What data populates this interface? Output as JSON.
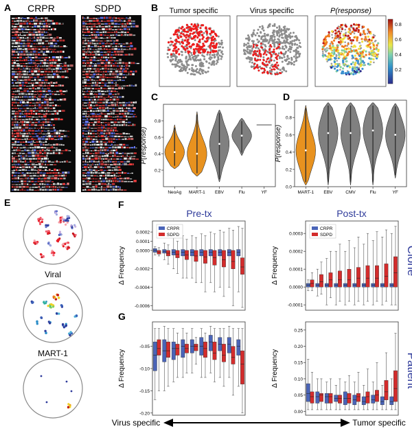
{
  "figure": {
    "panel_letters": [
      "A",
      "B",
      "C",
      "D",
      "E",
      "F",
      "G"
    ],
    "panelA": {
      "labels": [
        "CRPR",
        "SDPD"
      ]
    },
    "panelB": {
      "titles": [
        "Tumor specific",
        "Virus specific",
        "P(response)"
      ],
      "colorbar_ticks": [
        "0.8",
        "0.6",
        "0.4",
        "0.2"
      ]
    },
    "panelE": {
      "labels": [
        "Viral",
        "MART-1"
      ]
    },
    "panelF": {
      "titles": [
        "Pre-tx",
        "Post-tx"
      ]
    },
    "row_labels": [
      "Clone",
      "Patient"
    ],
    "legend": [
      "CRPR",
      "SDPD"
    ],
    "bottom_axis": {
      "left": "Virus specific",
      "right": "Tumor specific"
    },
    "colors": {
      "orange": "#e8921f",
      "grey": "#808080",
      "crpr": "#4a64b8",
      "sdpd": "#d32c2c",
      "title_blue": "#2e3a9a"
    }
  },
  "chart_data": [
    {
      "id": "C",
      "type": "violin",
      "ylabel": "P(response)",
      "ylim": [
        0.0,
        1.0
      ],
      "yticks": [
        "0.2",
        "0.4",
        "0.6",
        "0.8"
      ],
      "ytick_values": [
        0.2,
        0.4,
        0.6,
        0.8
      ],
      "categories": [
        "NeoAg",
        "MART-1",
        "EBV",
        "Flu",
        "YF"
      ],
      "colors": [
        "orange",
        "orange",
        "grey",
        "grey",
        "grey"
      ],
      "ranges": [
        [
          0.22,
          0.75
        ],
        [
          0.13,
          0.91
        ],
        [
          0.06,
          0.93
        ],
        [
          0.38,
          0.83
        ],
        [
          0.75,
          0.75
        ]
      ],
      "medians": [
        0.42,
        0.4,
        0.52,
        0.62,
        0.75
      ]
    },
    {
      "id": "D",
      "type": "violin",
      "ylabel": "P(response)",
      "ylim": [
        0.0,
        1.0
      ],
      "yticks": [
        "0.0",
        "0.2",
        "0.4",
        "0.6",
        "0.8"
      ],
      "ytick_values": [
        0.0,
        0.2,
        0.4,
        0.6,
        0.8
      ],
      "categories": [
        "MART-1",
        "EBV",
        "CMV",
        "Flu",
        "YF"
      ],
      "colors": [
        "orange",
        "grey",
        "grey",
        "grey",
        "grey"
      ],
      "ranges": [
        [
          0.02,
          0.94
        ],
        [
          0.02,
          0.97
        ],
        [
          0.02,
          0.97
        ],
        [
          0.02,
          0.97
        ],
        [
          0.1,
          0.96
        ]
      ],
      "medians": [
        0.42,
        0.62,
        0.62,
        0.65,
        0.6
      ]
    },
    {
      "id": "F-pre",
      "type": "box",
      "ylabel": "Δ Frequency",
      "ylim": [
        -0.00065,
        0.00032
      ],
      "yticks": [
        "0.0002",
        "0.0001",
        "0.0000",
        "-0.0002",
        "-0.0004",
        "-0.0006"
      ],
      "ytick_values": [
        0.0002,
        0.0001,
        0.0,
        -0.0002,
        -0.0004,
        -0.0006
      ],
      "series": [
        {
          "name": "CRPR",
          "boxes": [
            [
              -5e-05,
              -2e-05,
              -0.0,
              2e-05,
              4e-05
            ],
            [
              -0.0001,
              -3e-05,
              -1e-05,
              1e-05,
              8e-05
            ],
            [
              -0.0002,
              -5e-05,
              -2e-05,
              1e-05,
              0.00014
            ],
            [
              -0.0003,
              -6e-05,
              -2e-05,
              1e-05,
              0.00016
            ],
            [
              -0.0003,
              -6e-05,
              -2e-05,
              1e-05,
              0.00016
            ],
            [
              -0.00035,
              -6e-05,
              -2e-05,
              1e-05,
              0.00018
            ],
            [
              -0.00035,
              -6e-05,
              -2e-05,
              1e-05,
              0.0002
            ],
            [
              -0.0004,
              -6e-05,
              -2e-05,
              1e-05,
              0.00022
            ],
            [
              -0.0004,
              -6e-05,
              -2e-05,
              1e-05,
              0.00024
            ],
            [
              -0.00045,
              -6e-05,
              -2e-05,
              1e-05,
              0.00026
            ]
          ]
        },
        {
          "name": "SDPD",
          "boxes": [
            [
              -6e-05,
              -4e-05,
              -2e-05,
              0.0,
              3e-05
            ],
            [
              -0.00015,
              -6e-05,
              -3e-05,
              0.0,
              6e-05
            ],
            [
              -0.00025,
              -8e-05,
              -4e-05,
              0.0,
              0.0001
            ],
            [
              -0.0003,
              -0.0001,
              -5e-05,
              0.0,
              0.00012
            ],
            [
              -0.00035,
              -0.00012,
              -6e-05,
              0.0,
              0.00014
            ],
            [
              -0.00045,
              -0.00014,
              -7e-05,
              0.0,
              0.00016
            ],
            [
              -0.00045,
              -0.00016,
              -8e-05,
              0.0,
              0.00018
            ],
            [
              -0.0005,
              -0.00018,
              -0.0001,
              0.0,
              0.0002
            ],
            [
              -0.0006,
              -0.0002,
              -0.00012,
              0.0,
              0.00022
            ],
            [
              -0.00062,
              -0.00026,
              -0.00018,
              -8e-05,
              0.00024
            ]
          ]
        }
      ]
    },
    {
      "id": "F-post",
      "type": "box",
      "ylabel": "Δ Frequency",
      "ylim": [
        -0.00013,
        0.00037
      ],
      "yticks": [
        "0.0003",
        "0.0002",
        "0.0001",
        "0.0000",
        "-0.0001"
      ],
      "ytick_values": [
        0.0003,
        0.0002,
        0.0001,
        0.0,
        -0.0001
      ],
      "series": [
        {
          "name": "CRPR",
          "boxes": [
            [
              -2e-05,
              0.0,
              1e-05,
              2e-05,
              4e-05
            ],
            [
              -5e-05,
              0.0,
              1e-05,
              2e-05,
              0.0001
            ],
            [
              -0.0001,
              0.0,
              1e-05,
              2e-05,
              0.00016
            ],
            [
              -0.0001,
              0.0,
              1e-05,
              2e-05,
              0.0002
            ],
            [
              -0.0001,
              0.0,
              1e-05,
              2e-05,
              0.0002
            ],
            [
              -0.0001,
              0.0,
              1e-05,
              2e-05,
              0.00022
            ],
            [
              -0.0001,
              0.0,
              1e-05,
              2e-05,
              0.00024
            ],
            [
              -0.0001,
              0.0,
              1e-05,
              2e-05,
              0.00026
            ],
            [
              -0.0001,
              0.0,
              1e-05,
              2e-05,
              0.00028
            ],
            [
              -0.0001,
              0.0,
              1e-05,
              2e-05,
              0.0003
            ]
          ]
        },
        {
          "name": "SDPD",
          "boxes": [
            [
              -2e-05,
              0.0,
              2e-05,
              4e-05,
              8e-05
            ],
            [
              -4e-05,
              0.0,
              3e-05,
              7e-05,
              0.00014
            ],
            [
              -6e-05,
              0.0,
              4e-05,
              8e-05,
              0.0002
            ],
            [
              -8e-05,
              0.0,
              4e-05,
              9e-05,
              0.00024
            ],
            [
              -8e-05,
              0.0,
              4e-05,
              0.0001,
              0.00026
            ],
            [
              -8e-05,
              0.0,
              5e-05,
              0.00011,
              0.00028
            ],
            [
              -8e-05,
              0.0,
              5e-05,
              0.00012,
              0.0003
            ],
            [
              -8e-05,
              0.0,
              5e-05,
              0.00012,
              0.00031
            ],
            [
              -8e-05,
              0.0,
              6e-05,
              0.00013,
              0.00032
            ],
            [
              -0.0001,
              0.0,
              8e-05,
              0.00017,
              0.00034
            ]
          ]
        }
      ]
    },
    {
      "id": "G-pre",
      "type": "box",
      "ylabel": "Δ Frequency",
      "ylim": [
        -0.205,
        0.005
      ],
      "yticks": [
        "-0.05",
        "-0.10",
        "-0.15",
        "-0.20"
      ],
      "ytick_values": [
        -0.05,
        -0.1,
        -0.15,
        -0.2
      ],
      "series": [
        {
          "name": "CRPR",
          "boxes": [
            [
              -0.17,
              -0.105,
              -0.07,
              -0.04,
              -0.01
            ],
            [
              -0.15,
              -0.085,
              -0.06,
              -0.035,
              -0.005
            ],
            [
              -0.13,
              -0.08,
              -0.055,
              -0.04,
              -0.01
            ],
            [
              -0.12,
              -0.075,
              -0.05,
              -0.035,
              -0.01
            ],
            [
              -0.11,
              -0.065,
              -0.05,
              -0.035,
              -0.01
            ],
            [
              -0.12,
              -0.07,
              -0.05,
              -0.03,
              -0.01
            ],
            [
              -0.11,
              -0.06,
              -0.04,
              -0.025,
              -0.005
            ],
            [
              -0.12,
              -0.06,
              -0.045,
              -0.03,
              -0.01
            ],
            [
              -0.12,
              -0.065,
              -0.045,
              -0.03,
              -0.005
            ],
            [
              -0.14,
              -0.07,
              -0.05,
              -0.035,
              -0.01
            ]
          ]
        },
        {
          "name": "SDPD",
          "boxes": [
            [
              -0.15,
              -0.07,
              -0.055,
              -0.035,
              -0.01
            ],
            [
              -0.14,
              -0.075,
              -0.06,
              -0.04,
              -0.01
            ],
            [
              -0.12,
              -0.07,
              -0.055,
              -0.045,
              -0.02
            ],
            [
              -0.11,
              -0.065,
              -0.055,
              -0.045,
              -0.02
            ],
            [
              -0.09,
              -0.06,
              -0.05,
              -0.045,
              -0.03
            ],
            [
              -0.12,
              -0.075,
              -0.055,
              -0.04,
              -0.02
            ],
            [
              -0.13,
              -0.08,
              -0.065,
              -0.04,
              -0.01
            ],
            [
              -0.14,
              -0.085,
              -0.07,
              -0.045,
              -0.01
            ],
            [
              -0.16,
              -0.09,
              -0.075,
              -0.05,
              -0.01
            ],
            [
              -0.2,
              -0.135,
              -0.09,
              -0.06,
              -0.01
            ]
          ]
        }
      ]
    },
    {
      "id": "G-post",
      "type": "box",
      "ylabel": "Δ Frequency",
      "ylim": [
        -0.012,
        0.275
      ],
      "yticks": [
        "0.25",
        "0.20",
        "0.15",
        "0.10",
        "0.05",
        "0.00"
      ],
      "ytick_values": [
        0.25,
        0.2,
        0.15,
        0.1,
        0.05,
        0.0
      ],
      "series": [
        {
          "name": "CRPR",
          "boxes": [
            [
              0.005,
              0.03,
              0.055,
              0.085,
              0.16
            ],
            [
              0.005,
              0.025,
              0.045,
              0.06,
              0.1
            ],
            [
              0.005,
              0.025,
              0.045,
              0.055,
              0.09
            ],
            [
              0.005,
              0.03,
              0.04,
              0.05,
              0.08
            ],
            [
              0.005,
              0.02,
              0.04,
              0.06,
              0.09
            ],
            [
              0.005,
              0.02,
              0.035,
              0.05,
              0.09
            ],
            [
              0.005,
              0.02,
              0.03,
              0.045,
              0.08
            ],
            [
              0.005,
              0.025,
              0.035,
              0.05,
              0.09
            ],
            [
              0.005,
              0.02,
              0.03,
              0.045,
              0.08
            ],
            [
              0.005,
              0.02,
              0.03,
              0.045,
              0.1
            ]
          ]
        },
        {
          "name": "SDPD",
          "boxes": [
            [
              0.005,
              0.025,
              0.045,
              0.06,
              0.12
            ],
            [
              0.005,
              0.03,
              0.05,
              0.055,
              0.1
            ],
            [
              0.005,
              0.025,
              0.045,
              0.055,
              0.1
            ],
            [
              0.005,
              0.025,
              0.04,
              0.05,
              0.1
            ],
            [
              0.005,
              0.025,
              0.04,
              0.055,
              0.11
            ],
            [
              0.005,
              0.03,
              0.045,
              0.055,
              0.12
            ],
            [
              0.005,
              0.025,
              0.045,
              0.06,
              0.13
            ],
            [
              0.005,
              0.03,
              0.05,
              0.065,
              0.15
            ],
            [
              0.005,
              0.035,
              0.06,
              0.095,
              0.18
            ],
            [
              0.005,
              0.03,
              0.07,
              0.125,
              0.24
            ]
          ]
        }
      ]
    }
  ]
}
